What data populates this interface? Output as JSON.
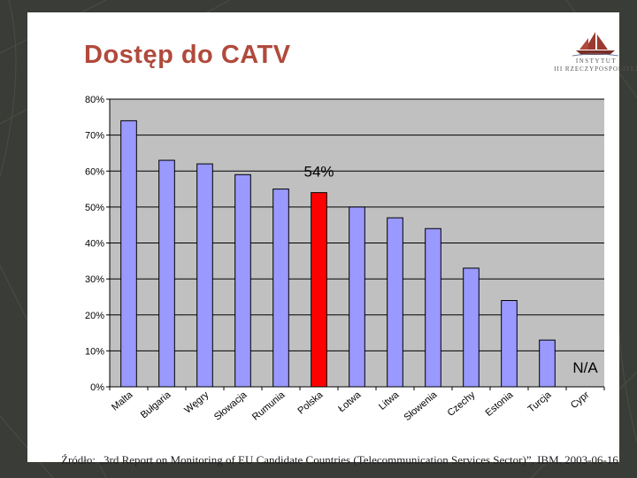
{
  "slide": {
    "title": "Dostęp do CATV",
    "logo": {
      "line1": "INSTYTUT",
      "line2": "III RZECZYPOSPOLITEJ",
      "icon": "sailing-ship-icon"
    },
    "source": "Źródło: „3rd Report on Monitoring of EU Candidate Countries (Telecommunication Services Sector)”, IBM, 2003-06-16"
  },
  "chart_data": {
    "type": "bar",
    "categories": [
      "Malta",
      "Bułgaria",
      "Węgry",
      "Słowacja",
      "Rumunia",
      "Polska",
      "Łotwa",
      "Litwa",
      "Słowenia",
      "Czechy",
      "Estonia",
      "Turcja",
      "Cypr"
    ],
    "values": [
      74,
      63,
      62,
      59,
      55,
      54,
      50,
      47,
      44,
      33,
      24,
      13,
      null
    ],
    "highlight": "Polska",
    "highlight_label": "54%",
    "na_label": "N/A",
    "ylim": [
      0,
      80
    ],
    "yticks": [
      "0%",
      "10%",
      "20%",
      "30%",
      "40%",
      "50%",
      "60%",
      "70%",
      "80%"
    ],
    "grid": true,
    "colors": {
      "bar": "#9999ff",
      "highlight": "#ff0000",
      "plot_bg": "#c0c0c0",
      "bar_border": "#000000"
    }
  }
}
